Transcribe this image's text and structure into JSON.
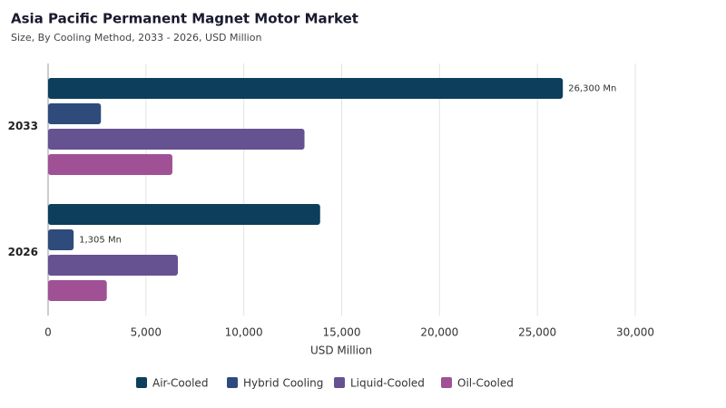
{
  "chart_data": {
    "type": "hbar",
    "title": "Asia Pacific Permanent Magnet Motor Market",
    "subtitle": "Size, By Cooling Method, 2033 - 2026, USD Million",
    "x_label": "USD Million",
    "categories": [
      "2033",
      "2026"
    ],
    "series": [
      {
        "name": "Air-Cooled",
        "color": "#0d3f5c",
        "values": [
          26300,
          13900
        ],
        "value_labels": [
          "26,300 Mn",
          null
        ]
      },
      {
        "name": "Hybrid Cooling",
        "color": "#2f4b7c",
        "values": [
          2700,
          1305
        ],
        "value_labels": [
          null,
          "1,305 Mn"
        ]
      },
      {
        "name": "Liquid-Cooled",
        "color": "#665191",
        "values": [
          13100,
          6630
        ],
        "value_labels": [
          null,
          null
        ]
      },
      {
        "name": "Oil-Cooled",
        "color": "#a05195",
        "values": [
          6350,
          3000
        ],
        "value_labels": [
          null,
          null
        ]
      }
    ],
    "xlim": [
      0,
      30000
    ],
    "xticks": [
      0,
      {
        "value": 5000,
        "label": "5,000"
      },
      {
        "value": 10000,
        "label": "10,000"
      },
      {
        "value": 15000,
        "label": "15,000"
      },
      {
        "value": 20000,
        "label": "20,000"
      },
      {
        "value": 25000,
        "label": "25,000"
      },
      {
        "value": 30000,
        "label": "30,000"
      }
    ],
    "grid": true,
    "legend": "bottom"
  }
}
